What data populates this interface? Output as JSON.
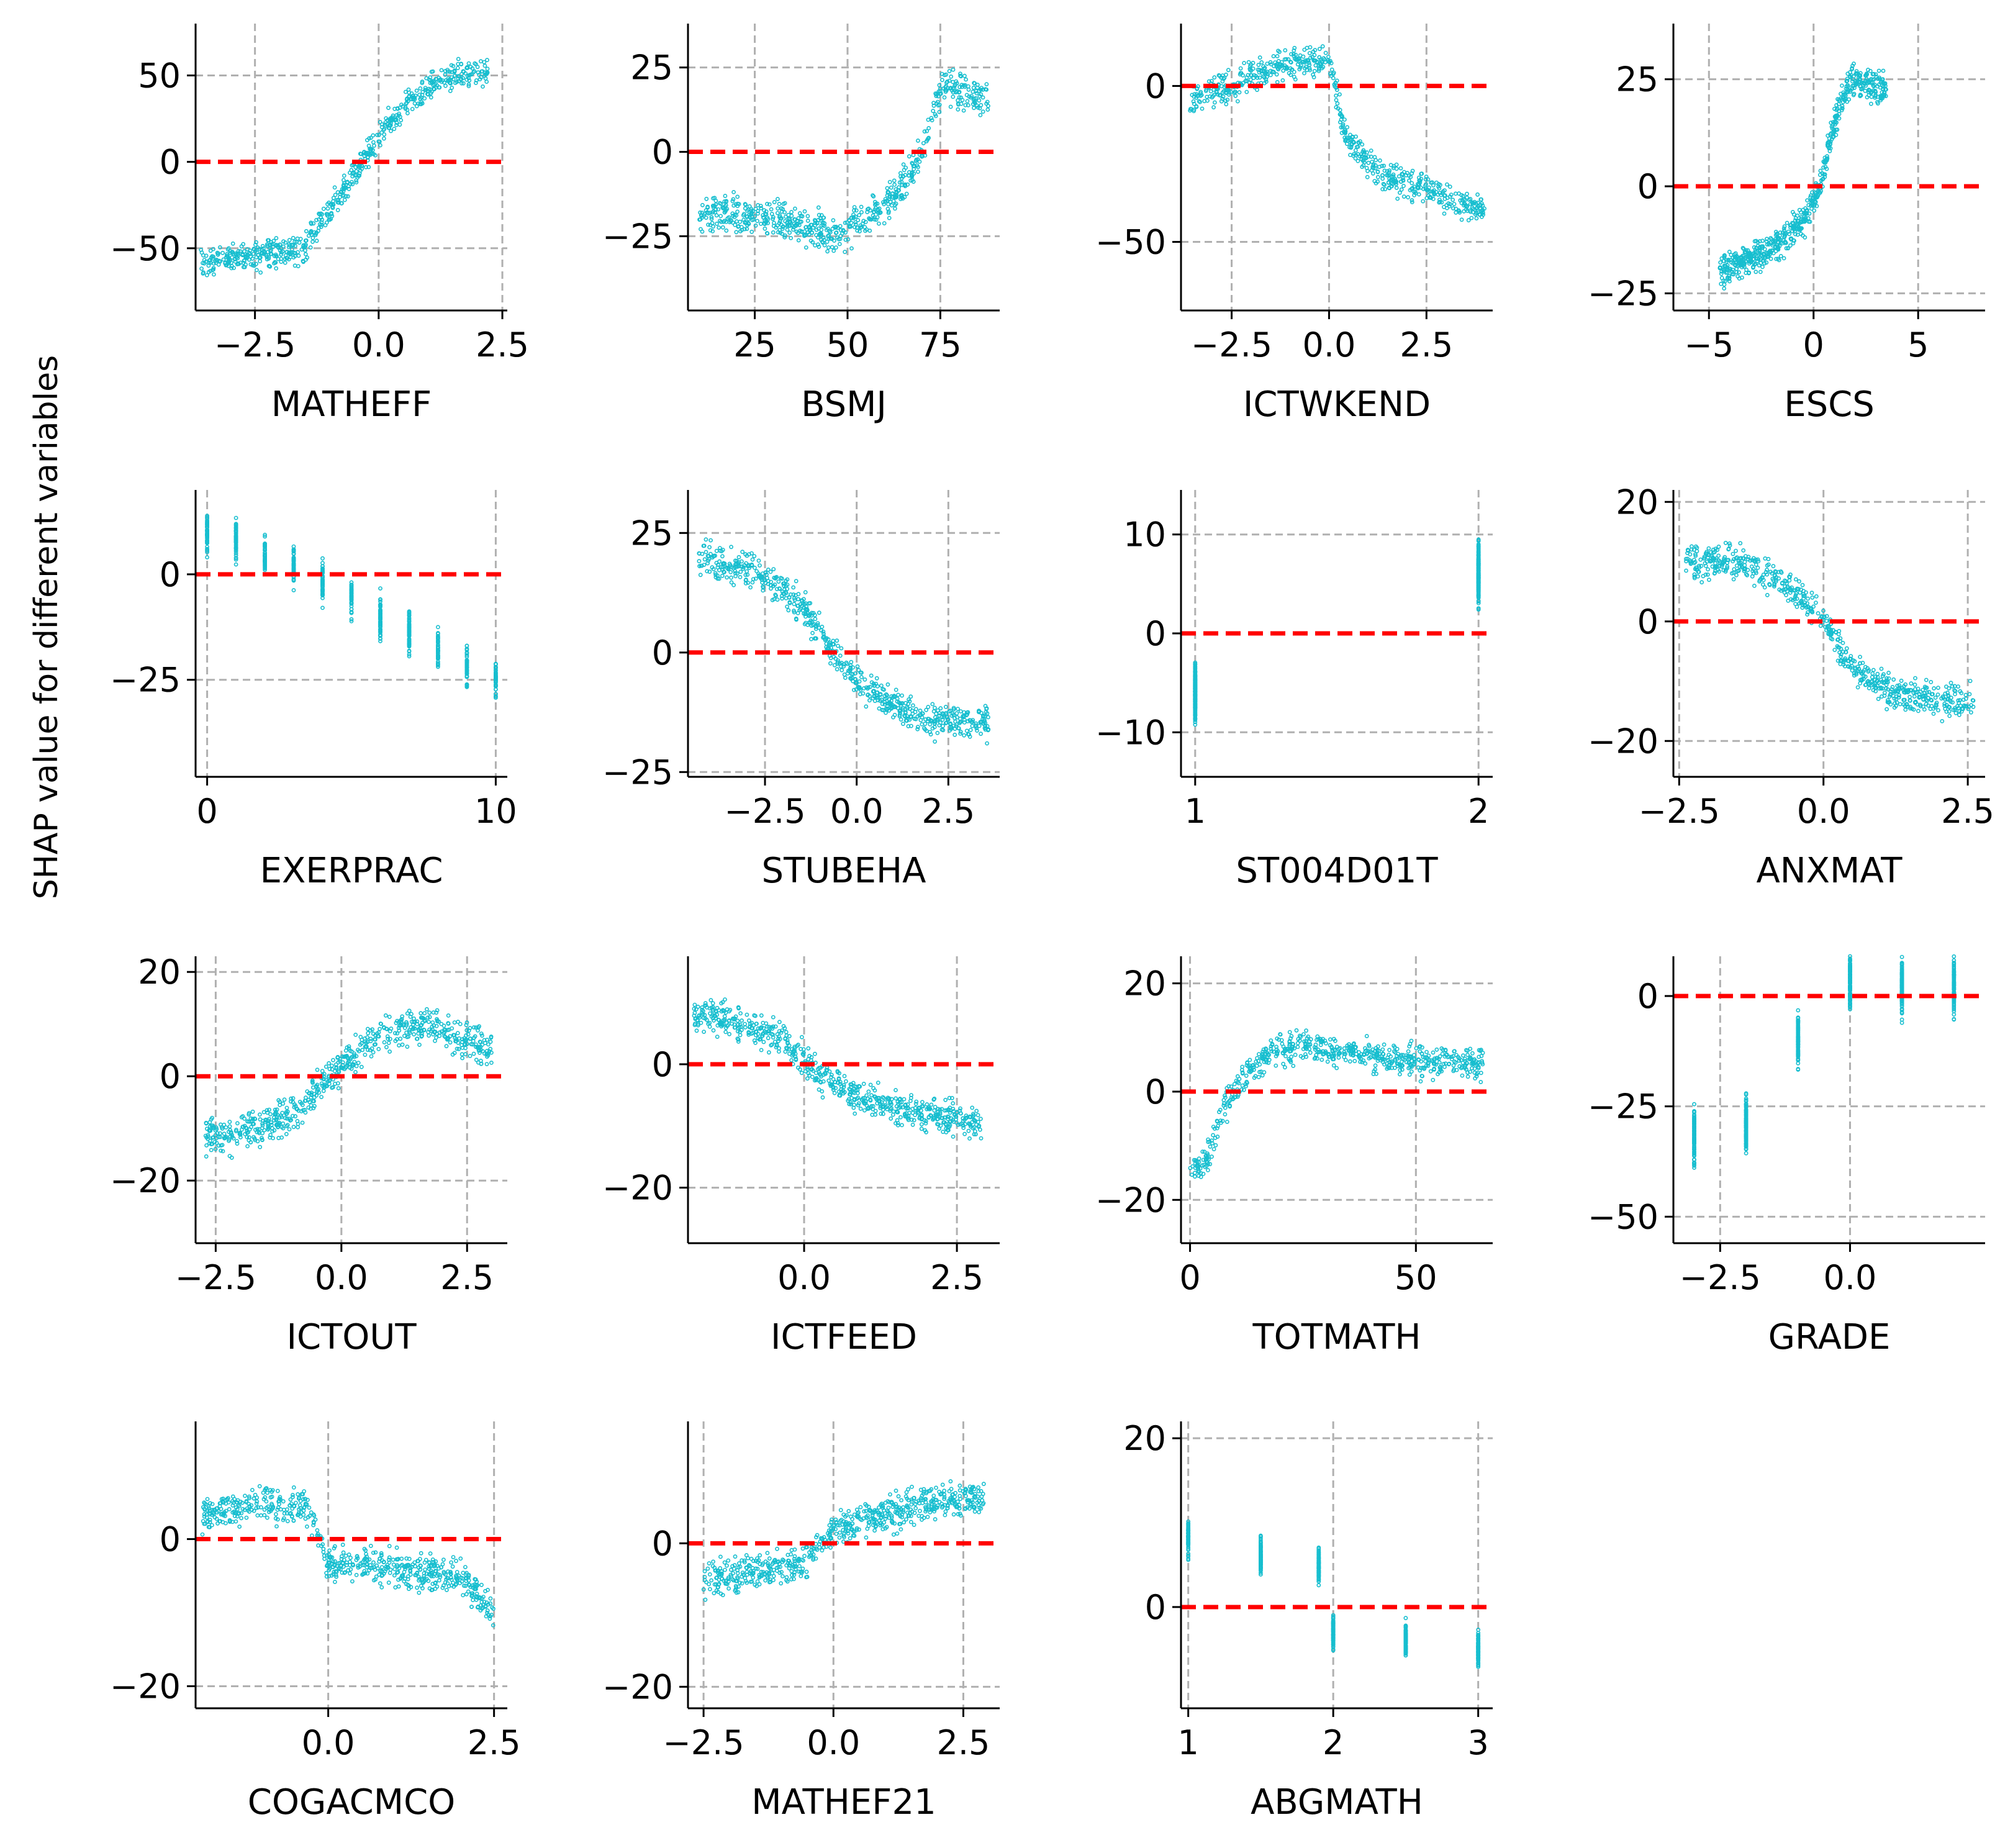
{
  "figure": {
    "ylabel": "SHAP value for different variables",
    "colors": {
      "points": "#17becf",
      "zero_line": "#ff0000",
      "grid": "#b0b0b0",
      "axis": "#000000"
    }
  },
  "chart_data": [
    {
      "type": "scatter",
      "xlabel": "MATHEFF",
      "xlim": [
        -3.7,
        2.6
      ],
      "ylim": [
        -86,
        80
      ],
      "xticks": [
        -2.5,
        0.0,
        2.5
      ],
      "xticklabels": [
        "−2.5",
        "0.0",
        "2.5"
      ],
      "yticks": [
        50,
        0,
        -50
      ],
      "yticklabels": [
        "50",
        "0",
        "−50"
      ],
      "xgrid": [
        -2.5,
        0,
        2.5
      ],
      "ygrid": [
        50,
        -50
      ],
      "zero_line": 0,
      "grid": true,
      "trend": [
        [
          -3.6,
          -58
        ],
        [
          -1.5,
          -50
        ],
        [
          -1.2,
          -35
        ],
        [
          -0.6,
          -12
        ],
        [
          0.0,
          15
        ],
        [
          0.6,
          35
        ],
        [
          1.4,
          50
        ],
        [
          2.2,
          52
        ]
      ],
      "spread": 12
    },
    {
      "type": "scatter",
      "xlabel": "BSMJ",
      "xlim": [
        7,
        91
      ],
      "ylim": [
        -47,
        38
      ],
      "xticks": [
        25,
        50,
        75
      ],
      "xticklabels": [
        "25",
        "50",
        "75"
      ],
      "yticks": [
        25,
        0,
        -25
      ],
      "yticklabels": [
        "25",
        "0",
        "−25"
      ],
      "xgrid": [
        25,
        50,
        75
      ],
      "ygrid": [
        25,
        -25
      ],
      "zero_line": 0,
      "grid": true,
      "trend": [
        [
          10,
          -18
        ],
        [
          30,
          -20
        ],
        [
          48,
          -25
        ],
        [
          62,
          -14
        ],
        [
          70,
          0
        ],
        [
          76,
          20
        ],
        [
          88,
          15
        ]
      ],
      "spread": 8
    },
    {
      "type": "scatter",
      "xlabel": "ICTWKEND",
      "xlim": [
        -3.8,
        4.2
      ],
      "ylim": [
        -72,
        20
      ],
      "xticks": [
        -2.5,
        0.0,
        2.5
      ],
      "xticklabels": [
        "−2.5",
        "0.0",
        "2.5"
      ],
      "yticks": [
        0,
        -50
      ],
      "yticklabels": [
        "0",
        "−50"
      ],
      "xgrid": [
        -2.5,
        0,
        2.5
      ],
      "ygrid": [
        -50
      ],
      "zero_line": 0,
      "grid": true,
      "trend": [
        [
          -3.6,
          -5
        ],
        [
          -2.0,
          3
        ],
        [
          -0.8,
          8
        ],
        [
          0.0,
          8
        ],
        [
          0.4,
          -15
        ],
        [
          1.2,
          -28
        ],
        [
          2.2,
          -32
        ],
        [
          4.0,
          -40
        ]
      ],
      "spread": 7
    },
    {
      "type": "scatter",
      "xlabel": "ESCS",
      "xlim": [
        -6.7,
        8.2
      ],
      "ylim": [
        -29,
        38
      ],
      "xticks": [
        -5,
        0,
        5
      ],
      "xticklabels": [
        "−5",
        "0",
        "5"
      ],
      "yticks": [
        25,
        0,
        -25
      ],
      "yticklabels": [
        "25",
        "0",
        "−25"
      ],
      "xgrid": [
        -5,
        0,
        5
      ],
      "ygrid": [
        25,
        -25
      ],
      "zero_line": 0,
      "grid": true,
      "trend": [
        [
          -4.5,
          -20
        ],
        [
          -2.0,
          -15
        ],
        [
          -0.5,
          -8
        ],
        [
          0.3,
          0
        ],
        [
          1.0,
          15
        ],
        [
          1.8,
          25
        ],
        [
          3.5,
          22
        ]
      ],
      "spread": 5
    },
    {
      "type": "scatter",
      "xlabel": "EXERPRAC",
      "xlim": [
        -0.4,
        10.4
      ],
      "ylim": [
        -48,
        20
      ],
      "xticks": [
        0,
        10
      ],
      "xticklabels": [
        "0",
        "10"
      ],
      "yticks": [
        0,
        -25
      ],
      "yticklabels": [
        "0",
        "−25"
      ],
      "xgrid": [
        0,
        10
      ],
      "ygrid": [
        -25
      ],
      "zero_line": 0,
      "grid": true,
      "trend": [
        [
          0,
          10
        ],
        [
          1,
          8
        ],
        [
          2,
          5
        ],
        [
          3,
          2
        ],
        [
          4,
          -2
        ],
        [
          5,
          -6
        ],
        [
          6,
          -10
        ],
        [
          7,
          -14
        ],
        [
          8,
          -18
        ],
        [
          9,
          -22
        ],
        [
          10,
          -25
        ]
      ],
      "spread": 7,
      "discrete_x": true
    },
    {
      "type": "scatter",
      "xlabel": "STUBEHA",
      "xlim": [
        -4.6,
        3.9
      ],
      "ylim": [
        -26,
        34
      ],
      "xticks": [
        -2.5,
        0.0,
        2.5
      ],
      "xticklabels": [
        "−2.5",
        "0.0",
        "2.5"
      ],
      "yticks": [
        25,
        0,
        -25
      ],
      "yticklabels": [
        "25",
        "0",
        "−25"
      ],
      "xgrid": [
        -2.5,
        0,
        2.5
      ],
      "ygrid": [
        25,
        -25
      ],
      "zero_line": 0,
      "grid": true,
      "trend": [
        [
          -4.3,
          20
        ],
        [
          -2.5,
          16
        ],
        [
          -1.5,
          10
        ],
        [
          -0.8,
          2
        ],
        [
          0.0,
          -6
        ],
        [
          1.0,
          -11
        ],
        [
          2.0,
          -14
        ],
        [
          3.6,
          -15
        ]
      ],
      "spread": 5
    },
    {
      "type": "scatter",
      "xlabel": "ST004D01T",
      "xlim": [
        0.95,
        2.05
      ],
      "ylim": [
        -14.5,
        14.5
      ],
      "xticks": [
        1,
        2
      ],
      "xticklabels": [
        "1",
        "2"
      ],
      "yticks": [
        10,
        0,
        -10
      ],
      "yticklabels": [
        "10",
        "0",
        "−10"
      ],
      "xgrid": [
        1,
        2
      ],
      "ygrid": [
        10,
        -10
      ],
      "zero_line": 0,
      "grid": true,
      "trend": [
        [
          1,
          -6
        ],
        [
          2,
          6
        ]
      ],
      "spread": 4,
      "discrete_x": true
    },
    {
      "type": "scatter",
      "xlabel": "ANXMAT",
      "xlim": [
        -2.6,
        2.8
      ],
      "ylim": [
        -26,
        22
      ],
      "xticks": [
        -2.5,
        0.0,
        2.5
      ],
      "xticklabels": [
        "−2.5",
        "0.0",
        "2.5"
      ],
      "yticks": [
        20,
        0,
        -20
      ],
      "yticklabels": [
        "20",
        "0",
        "−20"
      ],
      "xgrid": [
        -2.5,
        0,
        2.5
      ],
      "ygrid": [
        20,
        -20
      ],
      "zero_line": 0,
      "grid": true,
      "trend": [
        [
          -2.4,
          10
        ],
        [
          -1.5,
          10
        ],
        [
          -0.8,
          7
        ],
        [
          0.0,
          1
        ],
        [
          0.5,
          -8
        ],
        [
          1.2,
          -12
        ],
        [
          2.0,
          -13
        ],
        [
          2.6,
          -14
        ]
      ],
      "spread": 4
    },
    {
      "type": "scatter",
      "xlabel": "ICTOUT",
      "xlim": [
        -2.9,
        3.3
      ],
      "ylim": [
        -32,
        23
      ],
      "xticks": [
        -2.5,
        0.0,
        2.5
      ],
      "xticklabels": [
        "−2.5",
        "0.0",
        "2.5"
      ],
      "yticks": [
        20,
        0,
        -20
      ],
      "yticklabels": [
        "20",
        "0",
        "−20"
      ],
      "xgrid": [
        -2.5,
        0,
        2.5
      ],
      "ygrid": [
        20,
        -20
      ],
      "zero_line": 0,
      "grid": true,
      "trend": [
        [
          -2.7,
          -12
        ],
        [
          -1.5,
          -10
        ],
        [
          -0.8,
          -6
        ],
        [
          0.0,
          2
        ],
        [
          0.8,
          8
        ],
        [
          1.6,
          10
        ],
        [
          2.2,
          8
        ],
        [
          3.0,
          5
        ]
      ],
      "spread": 5
    },
    {
      "type": "scatter",
      "xlabel": "ICTFEED",
      "xlim": [
        -1.9,
        3.2
      ],
      "ylim": [
        -29,
        17.5
      ],
      "xticks": [
        0.0,
        2.5
      ],
      "xticklabels": [
        "0.0",
        "2.5"
      ],
      "yticks": [
        0,
        -20
      ],
      "yticklabels": [
        "0",
        "−20"
      ],
      "xgrid": [
        0,
        2.5
      ],
      "ygrid": [
        -20
      ],
      "zero_line": 0,
      "grid": true,
      "trend": [
        [
          -1.8,
          8
        ],
        [
          -1.0,
          7
        ],
        [
          -0.4,
          4
        ],
        [
          0.3,
          -2
        ],
        [
          1.0,
          -6
        ],
        [
          2.0,
          -8
        ],
        [
          2.9,
          -10
        ]
      ],
      "spread": 4
    },
    {
      "type": "scatter",
      "xlabel": "TOTMATH",
      "xlim": [
        -2,
        67
      ],
      "ylim": [
        -28,
        25
      ],
      "xticks": [
        0,
        50
      ],
      "xticklabels": [
        "0",
        "50"
      ],
      "yticks": [
        20,
        0,
        -20
      ],
      "yticklabels": [
        "20",
        "0",
        "−20"
      ],
      "xgrid": [
        0,
        50
      ],
      "ygrid": [
        20,
        -20
      ],
      "zero_line": 0,
      "grid": true,
      "trend": [
        [
          0,
          -15
        ],
        [
          3,
          -14
        ],
        [
          7,
          -4
        ],
        [
          12,
          3
        ],
        [
          20,
          8
        ],
        [
          30,
          8
        ],
        [
          45,
          6
        ],
        [
          65,
          5
        ]
      ],
      "spread": 4
    },
    {
      "type": "scatter",
      "xlabel": "GRADE",
      "xlim": [
        -3.4,
        2.6
      ],
      "ylim": [
        -56,
        9
      ],
      "xticks": [
        -2.5,
        0.0
      ],
      "xticklabels": [
        "−2.5",
        "0.0"
      ],
      "yticks": [
        0,
        -25,
        -50
      ],
      "yticklabels": [
        "0",
        "−25",
        "−50"
      ],
      "xgrid": [
        -2.5,
        0
      ],
      "ygrid": [
        -25,
        -50
      ],
      "zero_line": 0,
      "grid": true,
      "trend": [
        [
          -3,
          -32
        ],
        [
          -2,
          -30
        ],
        [
          -1,
          -10
        ],
        [
          0,
          3
        ],
        [
          1,
          2
        ],
        [
          2,
          2
        ]
      ],
      "spread": 9,
      "discrete_x": true
    },
    {
      "type": "scatter",
      "xlabel": "COGACMCO",
      "xlim": [
        -2.0,
        2.7
      ],
      "ylim": [
        -23,
        16
      ],
      "xticks": [
        0.0,
        2.5
      ],
      "xticklabels": [
        "0.0",
        "2.5"
      ],
      "yticks": [
        0,
        -20
      ],
      "yticklabels": [
        "0",
        "−20"
      ],
      "xgrid": [
        0,
        2.5
      ],
      "ygrid": [
        -20
      ],
      "zero_line": 0,
      "grid": true,
      "trend": [
        [
          -1.9,
          3
        ],
        [
          -1.0,
          5
        ],
        [
          -0.3,
          4
        ],
        [
          0.0,
          -3
        ],
        [
          1.0,
          -4
        ],
        [
          2.0,
          -5
        ],
        [
          2.5,
          -10
        ]
      ],
      "spread": 3.5
    },
    {
      "type": "scatter",
      "xlabel": "MATHEF21",
      "xlim": [
        -2.8,
        3.2
      ],
      "ylim": [
        -23,
        17
      ],
      "xticks": [
        -2.5,
        0.0,
        2.5
      ],
      "xticklabels": [
        "−2.5",
        "0.0",
        "2.5"
      ],
      "yticks": [
        0,
        -20
      ],
      "yticklabels": [
        "0",
        "−20"
      ],
      "xgrid": [
        -2.5,
        0,
        2.5
      ],
      "ygrid": [
        -20
      ],
      "zero_line": 0,
      "grid": true,
      "trend": [
        [
          -2.5,
          -5
        ],
        [
          -1.5,
          -4
        ],
        [
          -0.6,
          -3
        ],
        [
          0.0,
          2
        ],
        [
          1.0,
          4
        ],
        [
          2.0,
          6
        ],
        [
          2.9,
          6
        ]
      ],
      "spread": 3.5
    },
    {
      "type": "scatter",
      "xlabel": "ABGMATH",
      "xlim": [
        0.95,
        3.1
      ],
      "ylim": [
        -12,
        22
      ],
      "xticks": [
        1,
        2,
        3
      ],
      "xticklabels": [
        "1",
        "2",
        "3"
      ],
      "yticks": [
        20,
        0
      ],
      "yticklabels": [
        "20",
        "0"
      ],
      "xgrid": [
        1,
        2,
        3
      ],
      "ygrid": [
        20
      ],
      "zero_line": 0,
      "grid": true,
      "trend": [
        [
          1.0,
          8
        ],
        [
          1.5,
          6
        ],
        [
          1.9,
          5
        ],
        [
          2.0,
          -3
        ],
        [
          2.5,
          -4
        ],
        [
          3.0,
          -5
        ]
      ],
      "spread": 3,
      "discrete_x": true
    }
  ]
}
